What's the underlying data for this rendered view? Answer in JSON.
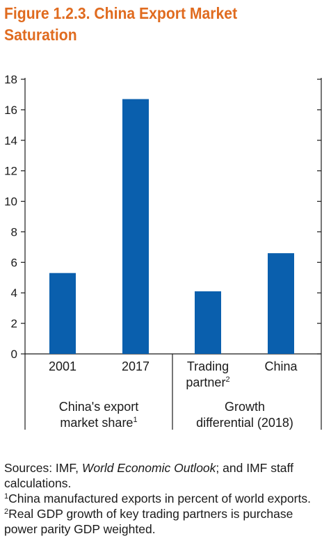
{
  "chart_data": {
    "type": "bar",
    "title": "Figure 1.2.3. China Export Market Saturation",
    "ylim": [
      0,
      18
    ],
    "yticks": [
      "0",
      "2",
      "4",
      "6",
      "8",
      "10",
      "12",
      "14",
      "16",
      "18"
    ],
    "categories": [
      "2001",
      "2017",
      "Trading partner",
      "China"
    ],
    "values": [
      5.3,
      16.7,
      4.1,
      6.6
    ],
    "groups": [
      {
        "label": "China's export market share",
        "footnote": "1",
        "categories": [
          "2001",
          "2017"
        ]
      },
      {
        "label": "Growth differential (2018)",
        "categories": [
          "Trading partner",
          "China"
        ]
      }
    ],
    "bar_color": "#0a5fad",
    "grid": false
  },
  "notes": {
    "sources_prefix": "Sources: IMF, ",
    "sources_italic": "World Economic Outlook",
    "sources_suffix": "; and IMF staff calculations.",
    "fn1_mark": "1",
    "fn1_text": "China manufactured exports in percent of world exports.",
    "fn2_mark": "2",
    "fn2_text": "Real GDP growth of key trading partners is purchase power parity GDP weighted."
  }
}
